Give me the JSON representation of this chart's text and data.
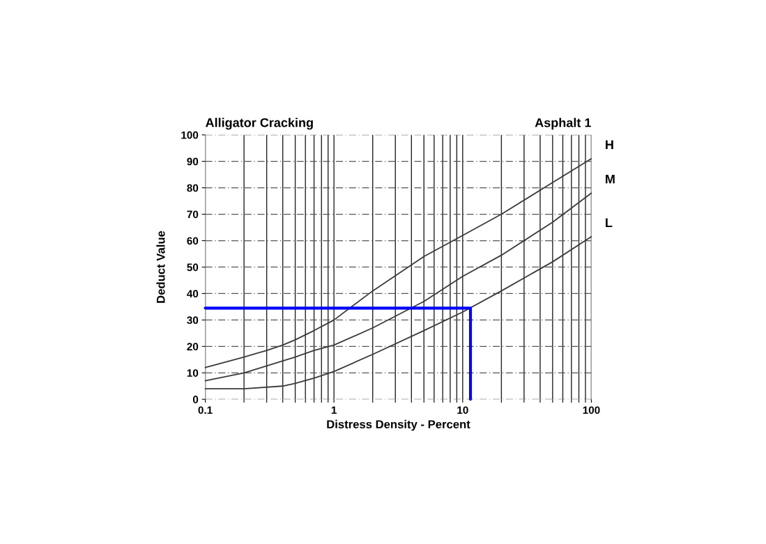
{
  "chart_data": {
    "type": "line",
    "title": "Alligator Cracking",
    "subtitle": "Asphalt 1",
    "xlabel": "Distress Density - Percent",
    "ylabel": "Deduct Value",
    "log": "x",
    "grid": true,
    "legend": false,
    "marker": "none",
    "line_style": "solid",
    "xlim": [
      0.1,
      100
    ],
    "ylim": [
      0,
      100
    ],
    "xticks": [
      {
        "value": 0.1,
        "label": "0.1"
      },
      {
        "value": 0.2,
        "label": null
      },
      {
        "value": 0.3,
        "label": null
      },
      {
        "value": 0.4,
        "label": null
      },
      {
        "value": 0.5,
        "label": null
      },
      {
        "value": 0.6,
        "label": null
      },
      {
        "value": 0.7,
        "label": null
      },
      {
        "value": 0.8,
        "label": null
      },
      {
        "value": 0.9,
        "label": null
      },
      1,
      {
        "value": 2,
        "label": null
      },
      {
        "value": 3,
        "label": null
      },
      {
        "value": 4,
        "label": null
      },
      {
        "value": 5,
        "label": null
      },
      {
        "value": 6,
        "label": null
      },
      {
        "value": 7,
        "label": null
      },
      {
        "value": 8,
        "label": null
      },
      {
        "value": 9,
        "label": null
      },
      10,
      {
        "value": 20,
        "label": null
      },
      {
        "value": 30,
        "label": null
      },
      {
        "value": 40,
        "label": null
      },
      {
        "value": 50,
        "label": null
      },
      {
        "value": 60,
        "label": null
      },
      {
        "value": 70,
        "label": null
      },
      {
        "value": 80,
        "label": null
      },
      {
        "value": 90,
        "label": null
      },
      100
    ],
    "yticks": [
      0,
      10,
      20,
      30,
      40,
      50,
      60,
      70,
      80,
      90,
      100
    ],
    "series": [
      {
        "name": "H",
        "color": "#3a3a3a",
        "x": [
          0.1,
          0.2,
          0.3,
          0.4,
          0.5,
          0.7,
          1,
          2,
          5,
          10,
          20,
          50,
          100
        ],
        "values": [
          12,
          16,
          18.5,
          20.5,
          22.5,
          26,
          30,
          41,
          54,
          62,
          70,
          82,
          91
        ]
      },
      {
        "name": "M",
        "color": "#3a3a3a",
        "x": [
          0.1,
          0.2,
          0.4,
          0.5,
          0.7,
          1,
          2,
          5,
          10,
          20,
          50,
          100
        ],
        "values": [
          7,
          10,
          14.5,
          16,
          18.5,
          20.5,
          27,
          37,
          46.5,
          54.5,
          67,
          78
        ]
      },
      {
        "name": "L",
        "color": "#3a3a3a",
        "x": [
          0.1,
          0.2,
          0.4,
          0.5,
          0.7,
          1,
          2,
          5,
          10,
          20,
          50,
          100
        ],
        "values": [
          4,
          4,
          5,
          6,
          8,
          10.5,
          17,
          26,
          33,
          41,
          52,
          61.5
        ]
      },
      {
        "color": "#0000ff",
        "x": [
          0.1,
          11.5,
          11.5
        ],
        "values": [
          34.5,
          34.5,
          0
        ]
      }
    ]
  }
}
